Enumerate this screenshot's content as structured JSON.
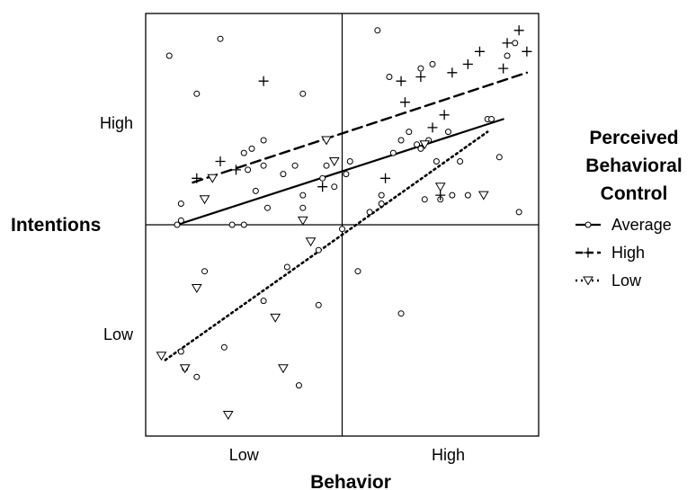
{
  "chart_data": {
    "type": "scatter",
    "xlabel": "Behavior",
    "ylabel": "Intentions",
    "x_ticks": [
      "Low",
      "High"
    ],
    "y_ticks": [
      "High",
      "Low"
    ],
    "xlim": [
      0,
      10
    ],
    "ylim": [
      0,
      10
    ],
    "grid": false,
    "reference_lines": {
      "x": 5,
      "y": 5
    },
    "legend": {
      "title_lines": [
        "Perceived",
        "Behavioral",
        "Control"
      ],
      "placement": "right"
    },
    "series": [
      {
        "name": "Average",
        "marker": "circle",
        "line_style": "solid",
        "fit_line": [
          [
            0.8,
            5.0
          ],
          [
            9.1,
            7.5
          ]
        ],
        "points": [
          [
            0.6,
            9.0
          ],
          [
            1.3,
            8.1
          ],
          [
            1.9,
            9.4
          ],
          [
            2.5,
            6.7
          ],
          [
            2.6,
            6.3
          ],
          [
            2.7,
            6.8
          ],
          [
            2.8,
            5.8
          ],
          [
            3.0,
            7.0
          ],
          [
            3.0,
            6.4
          ],
          [
            3.1,
            5.4
          ],
          [
            3.5,
            6.2
          ],
          [
            4.0,
            5.4
          ],
          [
            4.0,
            8.1
          ],
          [
            3.8,
            6.4
          ],
          [
            4.0,
            5.7
          ],
          [
            4.4,
            4.4
          ],
          [
            4.5,
            6.1
          ],
          [
            4.6,
            6.4
          ],
          [
            4.8,
            5.9
          ],
          [
            5.1,
            6.2
          ],
          [
            5.2,
            6.5
          ],
          [
            0.8,
            5.0
          ],
          [
            0.9,
            5.1
          ],
          [
            0.9,
            5.5
          ],
          [
            1.5,
            3.9
          ],
          [
            2.2,
            5.0
          ],
          [
            2.5,
            5.0
          ],
          [
            3.6,
            4.0
          ],
          [
            4.4,
            3.1
          ],
          [
            5.0,
            4.9
          ],
          [
            3.9,
            1.2
          ],
          [
            3.0,
            3.2
          ],
          [
            2.0,
            2.1
          ],
          [
            1.3,
            1.4
          ],
          [
            0.9,
            2.0
          ],
          [
            1.0,
            1.6
          ],
          [
            5.4,
            3.9
          ],
          [
            5.9,
            9.6
          ],
          [
            6.2,
            8.5
          ],
          [
            6.3,
            6.7
          ],
          [
            6.0,
            5.7
          ],
          [
            5.7,
            5.3
          ],
          [
            6.0,
            5.5
          ],
          [
            6.7,
            7.2
          ],
          [
            6.9,
            6.9
          ],
          [
            6.5,
            7.0
          ],
          [
            7.0,
            8.7
          ],
          [
            7.3,
            8.8
          ],
          [
            7.2,
            7.0
          ],
          [
            7.0,
            6.8
          ],
          [
            7.4,
            6.5
          ],
          [
            7.1,
            5.6
          ],
          [
            7.5,
            5.6
          ],
          [
            7.7,
            7.2
          ],
          [
            8.0,
            6.5
          ],
          [
            8.2,
            5.7
          ],
          [
            8.7,
            7.5
          ],
          [
            8.8,
            7.5
          ],
          [
            9.0,
            6.6
          ],
          [
            9.2,
            9.0
          ],
          [
            9.4,
            9.3
          ],
          [
            9.5,
            5.3
          ],
          [
            6.5,
            2.9
          ],
          [
            7.8,
            5.7
          ]
        ]
      },
      {
        "name": "High",
        "marker": "plus",
        "line_style": "dashed",
        "fit_line": [
          [
            1.2,
            6.0
          ],
          [
            9.7,
            8.6
          ]
        ],
        "points": [
          [
            1.3,
            6.1
          ],
          [
            1.9,
            6.5
          ],
          [
            2.3,
            6.3
          ],
          [
            3.0,
            8.4
          ],
          [
            4.5,
            5.9
          ],
          [
            6.1,
            6.1
          ],
          [
            6.6,
            7.9
          ],
          [
            7.5,
            5.7
          ],
          [
            7.6,
            7.6
          ],
          [
            7.8,
            8.6
          ],
          [
            8.2,
            8.8
          ],
          [
            8.5,
            9.1
          ],
          [
            9.1,
            8.7
          ],
          [
            9.5,
            9.6
          ],
          [
            9.2,
            9.3
          ],
          [
            9.7,
            9.1
          ],
          [
            7.0,
            8.5
          ],
          [
            7.3,
            7.3
          ],
          [
            6.5,
            8.4
          ]
        ]
      },
      {
        "name": "Low",
        "marker": "triangle-down",
        "line_style": "dotted",
        "fit_line": [
          [
            0.5,
            1.8
          ],
          [
            8.7,
            7.2
          ]
        ],
        "points": [
          [
            0.4,
            1.9
          ],
          [
            1.0,
            1.6
          ],
          [
            1.3,
            3.5
          ],
          [
            1.5,
            5.6
          ],
          [
            1.7,
            6.1
          ],
          [
            2.1,
            0.5
          ],
          [
            3.3,
            2.8
          ],
          [
            3.5,
            1.6
          ],
          [
            4.0,
            5.1
          ],
          [
            4.2,
            4.6
          ],
          [
            4.6,
            7.0
          ],
          [
            4.8,
            6.5
          ],
          [
            7.1,
            6.9
          ],
          [
            7.5,
            5.9
          ],
          [
            8.6,
            5.7
          ]
        ]
      }
    ]
  }
}
